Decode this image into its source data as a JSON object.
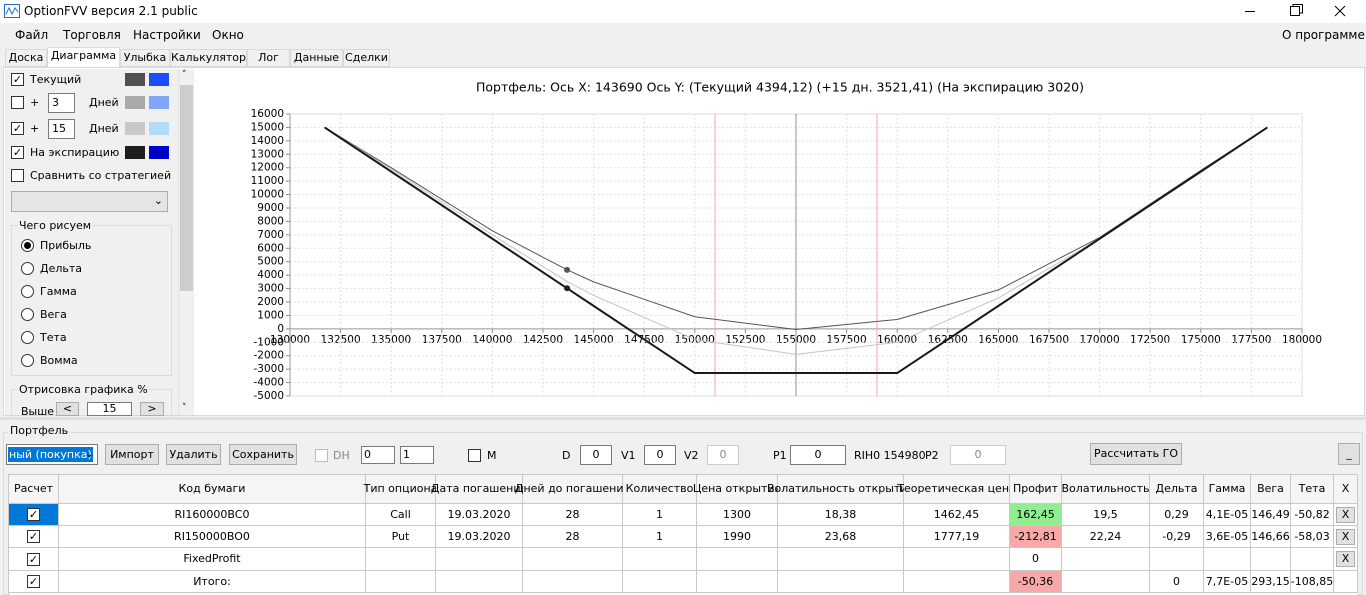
{
  "window": {
    "title": "OptionFVV версия 2.1 public"
  },
  "menu": {
    "items": [
      "Файл",
      "Торговля",
      "Настройки",
      "Окно"
    ],
    "about": "О программе"
  },
  "tabs": [
    "Доска",
    "Диаграмма",
    "Улыбка",
    "Калькулятор",
    "Лог",
    "Данные",
    "Сделки"
  ],
  "left_panel": {
    "current": "Текущий",
    "plus1": "+",
    "days1": "3",
    "days_label1": "Дней",
    "plus2": "+",
    "days2": "15",
    "days_label2": "Дней",
    "expiration": "На экспирацию",
    "compare": "Сравнить со стратегией",
    "draw_group": "Чего рисуем",
    "draw_options": [
      "Прибыль",
      "Дельта",
      "Гамма",
      "Вега",
      "Тета",
      "Вомма"
    ],
    "render_group": "Отрисовка графика %",
    "above": "Выше",
    "dec": "<",
    "percent": "15",
    "inc": ">"
  },
  "chart_data": {
    "type": "line",
    "title": "Портфель:  Ось X:  143690  Ось Y:   (Текущий 4394,12)   (+15 дн. 3521,41)   (На экспирацию 3020)",
    "x": [
      131710,
      135000,
      140000,
      143690,
      145000,
      150000,
      155000,
      160000,
      165000,
      170000,
      175000,
      178290
    ],
    "series": [
      {
        "name": "Текущий",
        "color": "#555555",
        "width": 1,
        "values": [
          15000,
          12000,
          7300,
          4394.12,
          3500,
          900,
          -50,
          700,
          2900,
          6800,
          11800,
          15000
        ]
      },
      {
        "name": "+15 дн.",
        "color": "#c4c4c4",
        "width": 1,
        "values": [
          15000,
          11900,
          7000,
          3521.41,
          2500,
          -800,
          -1900,
          -1000,
          2300,
          6700,
          11700,
          15000
        ]
      },
      {
        "name": "На экспирацию",
        "color": "#1a1a1a",
        "width": 2,
        "values": [
          15000,
          11710,
          6710,
          3020,
          1710,
          -3290,
          -3290,
          -3290,
          1710,
          6710,
          11710,
          15000
        ]
      }
    ],
    "points": [
      {
        "x": 143690,
        "y": 4394.12,
        "color": "#555555"
      },
      {
        "x": 143690,
        "y": 3020,
        "color": "#222222"
      }
    ],
    "vlines": [
      {
        "x": 151000,
        "color": "#f4a6a6"
      },
      {
        "x": 155000,
        "color": "#8a90a8"
      },
      {
        "x": 159000,
        "color": "#f4a6a6"
      }
    ],
    "xlim": [
      130000,
      180000
    ],
    "xticks": [
      130000,
      132500,
      135000,
      137500,
      140000,
      142500,
      145000,
      147500,
      150000,
      152500,
      155000,
      157500,
      160000,
      162500,
      165000,
      167500,
      170000,
      172500,
      175000,
      177500,
      180000
    ],
    "ylim": [
      -5000,
      16000
    ],
    "yticks": [
      -5000,
      -4000,
      -3000,
      -2000,
      -1000,
      0,
      1000,
      2000,
      3000,
      4000,
      5000,
      6000,
      7000,
      8000,
      9000,
      10000,
      11000,
      12000,
      13000,
      14000,
      15000,
      16000
    ],
    "grid": true
  },
  "portfolio": {
    "group": "Портфель",
    "mode": "ный (покупка)",
    "import": "Импорт",
    "delete": "Удалить",
    "save": "Сохранить",
    "dh": "DH",
    "spin1": "0",
    "spin2": "1",
    "m": "M",
    "d_label": "D",
    "d": "0",
    "v1_label": "V1",
    "v1": "0",
    "v2_label": "V2",
    "v2": "0",
    "p1_label": "P1",
    "p1": "0",
    "ticker": "RIH0 154980",
    "p2_label": "P2",
    "p2": "0",
    "calc": "Рассчитать ГО",
    "minimize": "_"
  },
  "table": {
    "headers": [
      "Расчет",
      "Код бумаги",
      "Тип опциона",
      "Дата погашения",
      "Дней до погашения",
      "Количество",
      "Цена открытия",
      "Волатильность открытия",
      "Теоретическая цена",
      "Профит",
      "Волатильность",
      "Дельта",
      "Гамма",
      "Вега",
      "Тета",
      "X"
    ],
    "rows": [
      [
        "RI160000BC0",
        "Call",
        "19.03.2020",
        "28",
        "1",
        "1300",
        "18,38",
        "1462,45",
        "162,45",
        "19,5",
        "0,29",
        "4,1E-05",
        "146,49",
        "-50,82",
        "X"
      ],
      [
        "RI150000BO0",
        "Put",
        "19.03.2020",
        "28",
        "1",
        "1990",
        "23,68",
        "1777,19",
        "-212,81",
        "22,24",
        "-0,29",
        "3,6E-05",
        "146,66",
        "-58,03",
        "X"
      ],
      [
        "FixedProfit",
        null,
        null,
        null,
        null,
        null,
        null,
        null,
        "0",
        null,
        null,
        null,
        null,
        null,
        "X"
      ],
      [
        "Итого:",
        null,
        null,
        null,
        null,
        null,
        null,
        null,
        "-50,36",
        null,
        "0",
        "7,7E-05",
        "293,15",
        "-108,85",
        null
      ]
    ]
  }
}
